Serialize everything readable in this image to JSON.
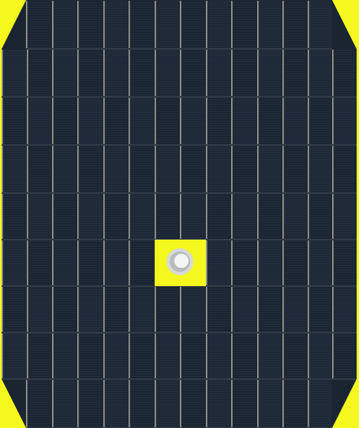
{
  "scene": {
    "subject": "solar-panel-array-tiling",
    "rows": 9,
    "columns": 14,
    "colors": {
      "background": "#f4f81e",
      "cell_base": "#1b2431",
      "cell_alt": "#1e2837",
      "cell_stripe": "#2a3446",
      "cell_highlight": "#5a6a73",
      "seam": "#c9ccb1",
      "hole_ring": "#d9d9d9",
      "hole_center": "#f4f6f4"
    }
  }
}
